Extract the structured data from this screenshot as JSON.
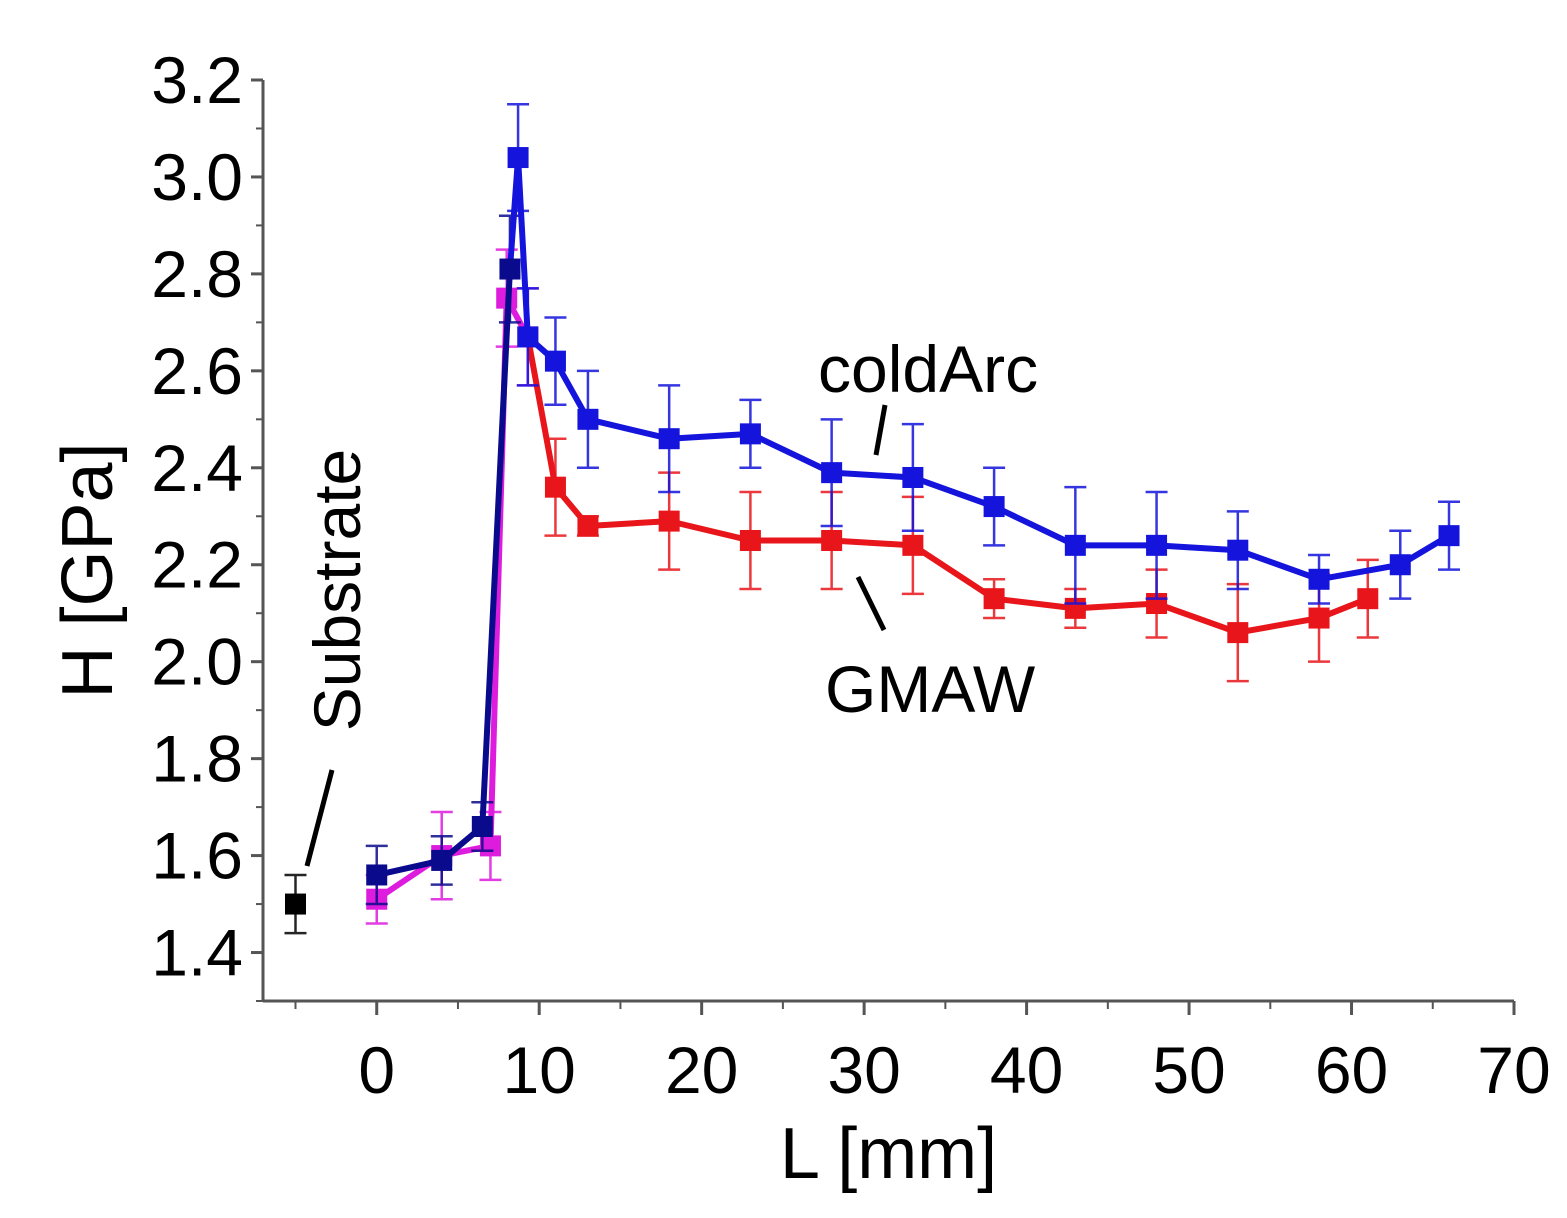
{
  "chart_data": {
    "type": "line",
    "xlabel": "L [mm]",
    "ylabel": "H [GPa]",
    "xlim": [
      -7,
      70
    ],
    "ylim": [
      1.3,
      3.2
    ],
    "xticks": [
      0,
      10,
      20,
      30,
      40,
      50,
      60,
      70
    ],
    "yticks": [
      1.4,
      1.6,
      1.8,
      2.0,
      2.2,
      2.4,
      2.6,
      2.8,
      3.0,
      3.2
    ],
    "xtick_labels": [
      "0",
      "10",
      "20",
      "30",
      "40",
      "50",
      "60",
      "70"
    ],
    "ytick_labels": [
      "1.4",
      "1.6",
      "1.8",
      "2.0",
      "2.2",
      "2.4",
      "2.6",
      "2.8",
      "3.0",
      "3.2"
    ],
    "series": [
      {
        "name": "Substrate",
        "color": "#000000",
        "connected": false,
        "x": [
          -5
        ],
        "y": [
          1.5
        ],
        "err": [
          0.06
        ]
      },
      {
        "name": "GMAW",
        "color": "#e8161b",
        "initial_color": "#dd1cdd",
        "initial_points": 5,
        "x": [
          0,
          4,
          7,
          8,
          9.3,
          11,
          13,
          18,
          23,
          28,
          33,
          38,
          43,
          48,
          53,
          58,
          61
        ],
        "y": [
          1.51,
          1.6,
          1.62,
          2.75,
          2.67,
          2.36,
          2.28,
          2.29,
          2.25,
          2.25,
          2.24,
          2.13,
          2.11,
          2.12,
          2.06,
          2.09,
          2.13
        ],
        "err": [
          0.05,
          0.09,
          0.07,
          0.1,
          0.1,
          0.1,
          0.02,
          0.1,
          0.1,
          0.1,
          0.1,
          0.04,
          0.04,
          0.07,
          0.1,
          0.09,
          0.08
        ]
      },
      {
        "name": "coldArc",
        "color": "#1414dc",
        "initial_color": "#0a0a8c",
        "initial_points": 4,
        "x": [
          0,
          4,
          6.5,
          8.2,
          8.7,
          9.3,
          11,
          13,
          18,
          23,
          28,
          33,
          38,
          43,
          48,
          53,
          58,
          63,
          66
        ],
        "y": [
          1.56,
          1.59,
          1.66,
          2.81,
          3.04,
          2.67,
          2.62,
          2.5,
          2.46,
          2.47,
          2.39,
          2.38,
          2.32,
          2.24,
          2.24,
          2.23,
          2.17,
          2.2,
          2.26
        ],
        "err": [
          0.06,
          0.05,
          0.05,
          0.11,
          0.11,
          0.1,
          0.09,
          0.1,
          0.11,
          0.07,
          0.11,
          0.11,
          0.08,
          0.12,
          0.11,
          0.08,
          0.05,
          0.07,
          0.07
        ]
      }
    ],
    "annotations": [
      {
        "text": "Substrate",
        "target_series": "Substrate"
      },
      {
        "text": "coldArc",
        "target_series": "coldArc"
      },
      {
        "text": "GMAW",
        "target_series": "GMAW"
      }
    ]
  }
}
